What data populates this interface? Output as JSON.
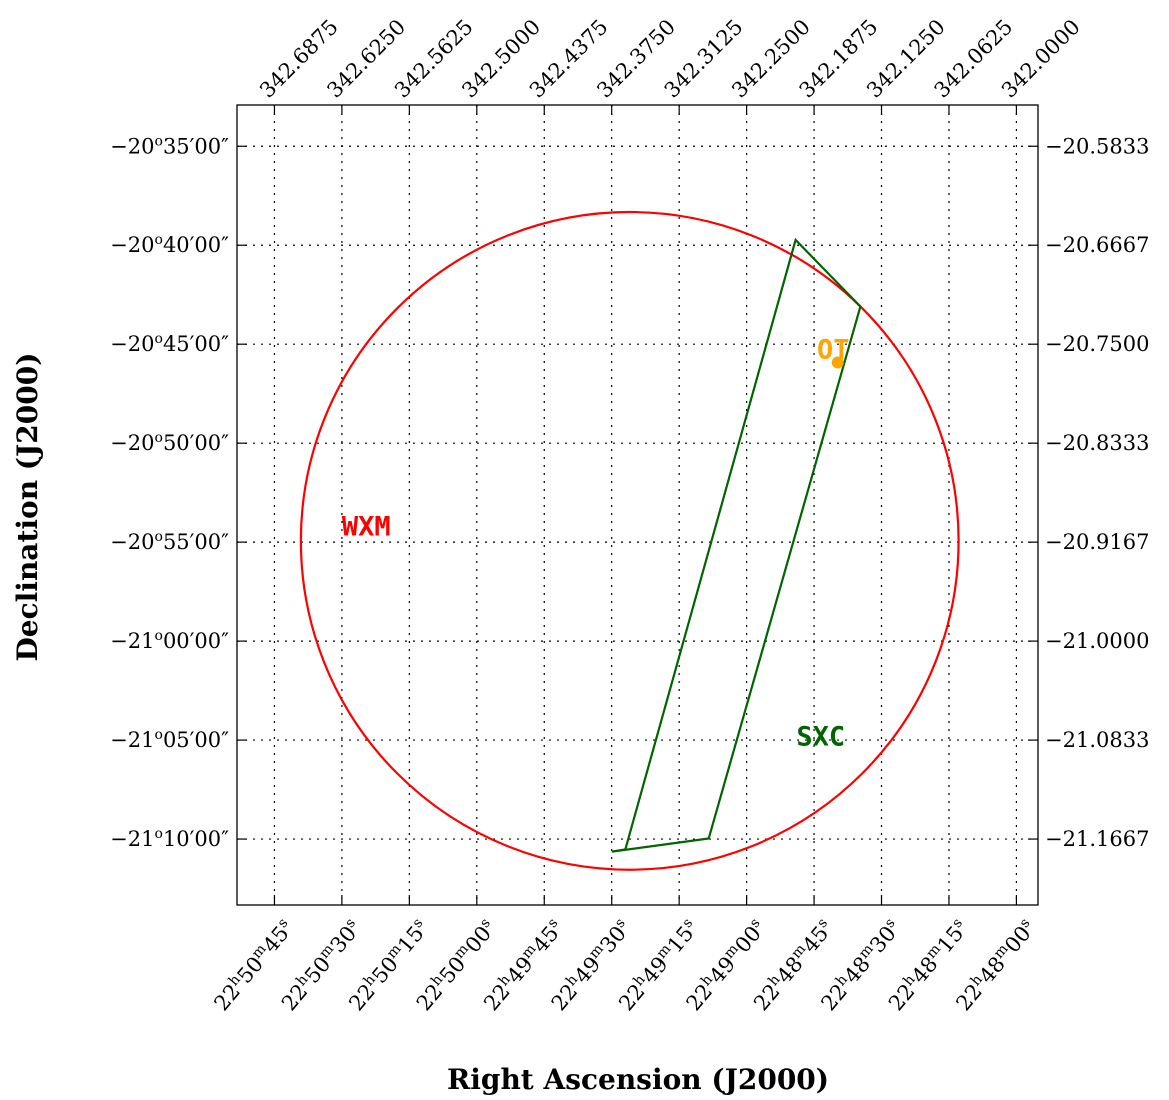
{
  "chart_data": {
    "type": "scatter",
    "title": "",
    "xlabel": "Right Ascension (J2000)",
    "ylabel": "Declination (J2000)",
    "xlim": [
      342.7222,
      341.98
    ],
    "ylim": [
      -21.2222,
      -20.5486
    ],
    "grid": true,
    "bottom_ticks": [
      {
        "ra": 342.6875,
        "h": "22",
        "m": "50",
        "s": "45"
      },
      {
        "ra": 342.625,
        "h": "22",
        "m": "50",
        "s": "30"
      },
      {
        "ra": 342.5625,
        "h": "22",
        "m": "50",
        "s": "15"
      },
      {
        "ra": 342.5,
        "h": "22",
        "m": "50",
        "s": "00"
      },
      {
        "ra": 342.4375,
        "h": "22",
        "m": "49",
        "s": "45"
      },
      {
        "ra": 342.375,
        "h": "22",
        "m": "49",
        "s": "30"
      },
      {
        "ra": 342.3125,
        "h": "22",
        "m": "49",
        "s": "15"
      },
      {
        "ra": 342.25,
        "h": "22",
        "m": "49",
        "s": "00"
      },
      {
        "ra": 342.1875,
        "h": "22",
        "m": "48",
        "s": "45"
      },
      {
        "ra": 342.125,
        "h": "22",
        "m": "48",
        "s": "30"
      },
      {
        "ra": 342.0625,
        "h": "22",
        "m": "48",
        "s": "15"
      },
      {
        "ra": 342.0,
        "h": "22",
        "m": "48",
        "s": "00"
      }
    ],
    "top_ticks": [
      {
        "ra": 342.6875,
        "label": "342.6875"
      },
      {
        "ra": 342.625,
        "label": "342.6250"
      },
      {
        "ra": 342.5625,
        "label": "342.5625"
      },
      {
        "ra": 342.5,
        "label": "342.5000"
      },
      {
        "ra": 342.4375,
        "label": "342.4375"
      },
      {
        "ra": 342.375,
        "label": "342.3750"
      },
      {
        "ra": 342.3125,
        "label": "342.3125"
      },
      {
        "ra": 342.25,
        "label": "342.2500"
      },
      {
        "ra": 342.1875,
        "label": "342.1875"
      },
      {
        "ra": 342.125,
        "label": "342.1250"
      },
      {
        "ra": 342.0625,
        "label": "342.0625"
      },
      {
        "ra": 342.0,
        "label": "342.0000"
      }
    ],
    "left_ticks": [
      {
        "dec": -20.583333,
        "sign": "−",
        "d": "20",
        "m": "35",
        "s": "00"
      },
      {
        "dec": -20.666667,
        "sign": "−",
        "d": "20",
        "m": "40",
        "s": "00"
      },
      {
        "dec": -20.75,
        "sign": "−",
        "d": "20",
        "m": "45",
        "s": "00"
      },
      {
        "dec": -20.833333,
        "sign": "−",
        "d": "20",
        "m": "50",
        "s": "00"
      },
      {
        "dec": -20.916667,
        "sign": "−",
        "d": "20",
        "m": "55",
        "s": "00"
      },
      {
        "dec": -21.0,
        "sign": "−",
        "d": "21",
        "m": "00",
        "s": "00"
      },
      {
        "dec": -21.083333,
        "sign": "−",
        "d": "21",
        "m": "05",
        "s": "00"
      },
      {
        "dec": -21.166667,
        "sign": "−",
        "d": "21",
        "m": "10",
        "s": "00"
      }
    ],
    "right_ticks": [
      {
        "dec": -20.583333,
        "label": "−20.5833"
      },
      {
        "dec": -20.666667,
        "label": "−20.6667"
      },
      {
        "dec": -20.75,
        "label": "−20.7500"
      },
      {
        "dec": -20.833333,
        "label": "−20.8333"
      },
      {
        "dec": -20.916667,
        "label": "−20.9167"
      },
      {
        "dec": -21.0,
        "label": "−21.0000"
      },
      {
        "dec": -21.083333,
        "label": "−21.0833"
      },
      {
        "dec": -21.166667,
        "label": "−21.1667"
      }
    ],
    "regions": [
      {
        "name": "WXM",
        "shape": "circle",
        "center_ra": 342.3583,
        "center_dec": -20.9156,
        "radius_dec": 0.2769,
        "color": "#ff0000",
        "label_ra": 342.625,
        "label_dec": -20.9033
      },
      {
        "name": "SXC",
        "shape": "polygon",
        "vertices": [
          {
            "ra": 342.2046,
            "dec": -20.6622
          },
          {
            "ra": 342.1446,
            "dec": -20.7183
          },
          {
            "ra": 342.2851,
            "dec": -21.1662
          },
          {
            "ra": 342.3749,
            "dec": -21.1772
          },
          {
            "ra": 342.3624,
            "dec": -21.1755
          }
        ],
        "color": "#006400",
        "label_ra": 342.2039,
        "label_dec": -21.0804
      }
    ],
    "points": [
      {
        "name": "OT",
        "ra": 342.1656,
        "dec": -20.7654,
        "color": "#ffa500",
        "label_ra": 342.1848,
        "label_dec": -20.7543
      }
    ]
  }
}
